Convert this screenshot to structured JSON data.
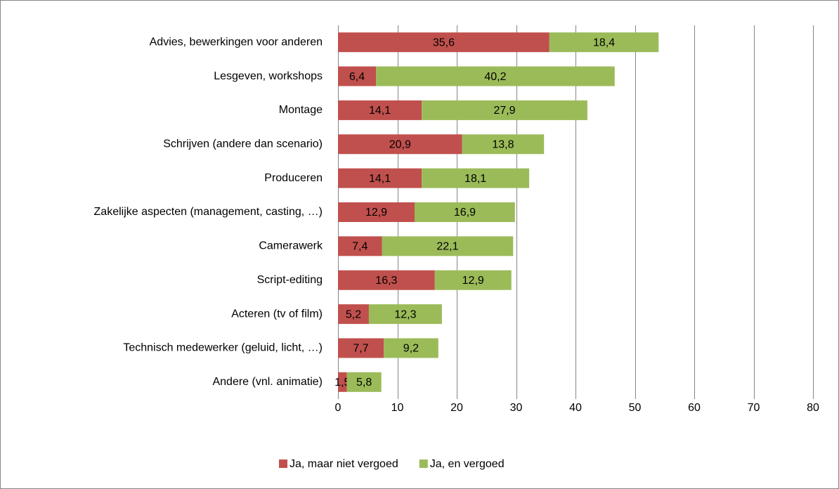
{
  "chart_data": {
    "type": "stacked-barh",
    "categories": [
      "Advies, bewerkingen voor anderen",
      "Lesgeven, workshops",
      "Montage",
      "Schrijven (andere dan scenario)",
      "Produceren",
      "Zakelijke aspecten (management, casting, …)",
      "Camerawerk",
      "Script-editing",
      "Acteren (tv of film)",
      "Technisch medewerker (geluid, licht, …)",
      "Andere (vnl. animatie)"
    ],
    "series": [
      {
        "name": "Ja, maar niet vergoed",
        "color": "#c0504d",
        "values": [
          35.6,
          6.4,
          14.1,
          20.9,
          14.1,
          12.9,
          7.4,
          16.3,
          5.2,
          7.7,
          1.5
        ],
        "value_labels": [
          "35,6",
          "6,4",
          "14,1",
          "20,9",
          "14,1",
          "12,9",
          "7,4",
          "16,3",
          "5,2",
          "7,7",
          "1,5"
        ]
      },
      {
        "name": "Ja, en vergoed",
        "color": "#9bbb59",
        "values": [
          18.4,
          40.2,
          27.9,
          13.8,
          18.1,
          16.9,
          22.1,
          12.9,
          12.3,
          9.2,
          5.8
        ],
        "value_labels": [
          "18,4",
          "40,2",
          "27,9",
          "13,8",
          "18,1",
          "16,9",
          "22,1",
          "12,9",
          "12,3",
          "9,2",
          "5,8"
        ]
      }
    ],
    "xlim": [
      0,
      80
    ],
    "xticks": [
      0,
      10,
      20,
      30,
      40,
      50,
      60,
      70,
      80
    ],
    "grid": true,
    "legend": "bottom"
  }
}
